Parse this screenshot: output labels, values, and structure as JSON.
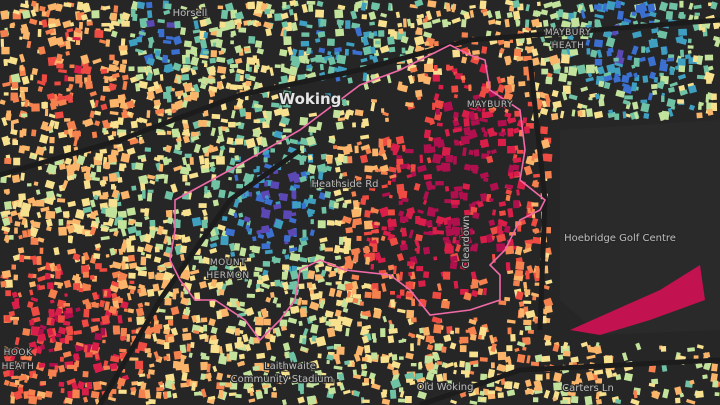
{
  "labels": {
    "horsell": "Horsell",
    "woking": "Woking",
    "heathside_rd": "Heathside Rd",
    "hoebridge": "Hoebridge Golf Centre",
    "cleardown": "Cleardown",
    "mount_hermon": [
      "MOUNT",
      "HERMON"
    ],
    "hook_heath": [
      "HOOK",
      "HEATH"
    ],
    "maybury": "MAYBURY",
    "maybury_heath": [
      "MAYBURY",
      "HEATH"
    ],
    "laithwaite": [
      "Laithwaite",
      "Community Stadium"
    ],
    "old_woking": "Old Woking",
    "carters_ln": "Carters Ln"
  }
}
